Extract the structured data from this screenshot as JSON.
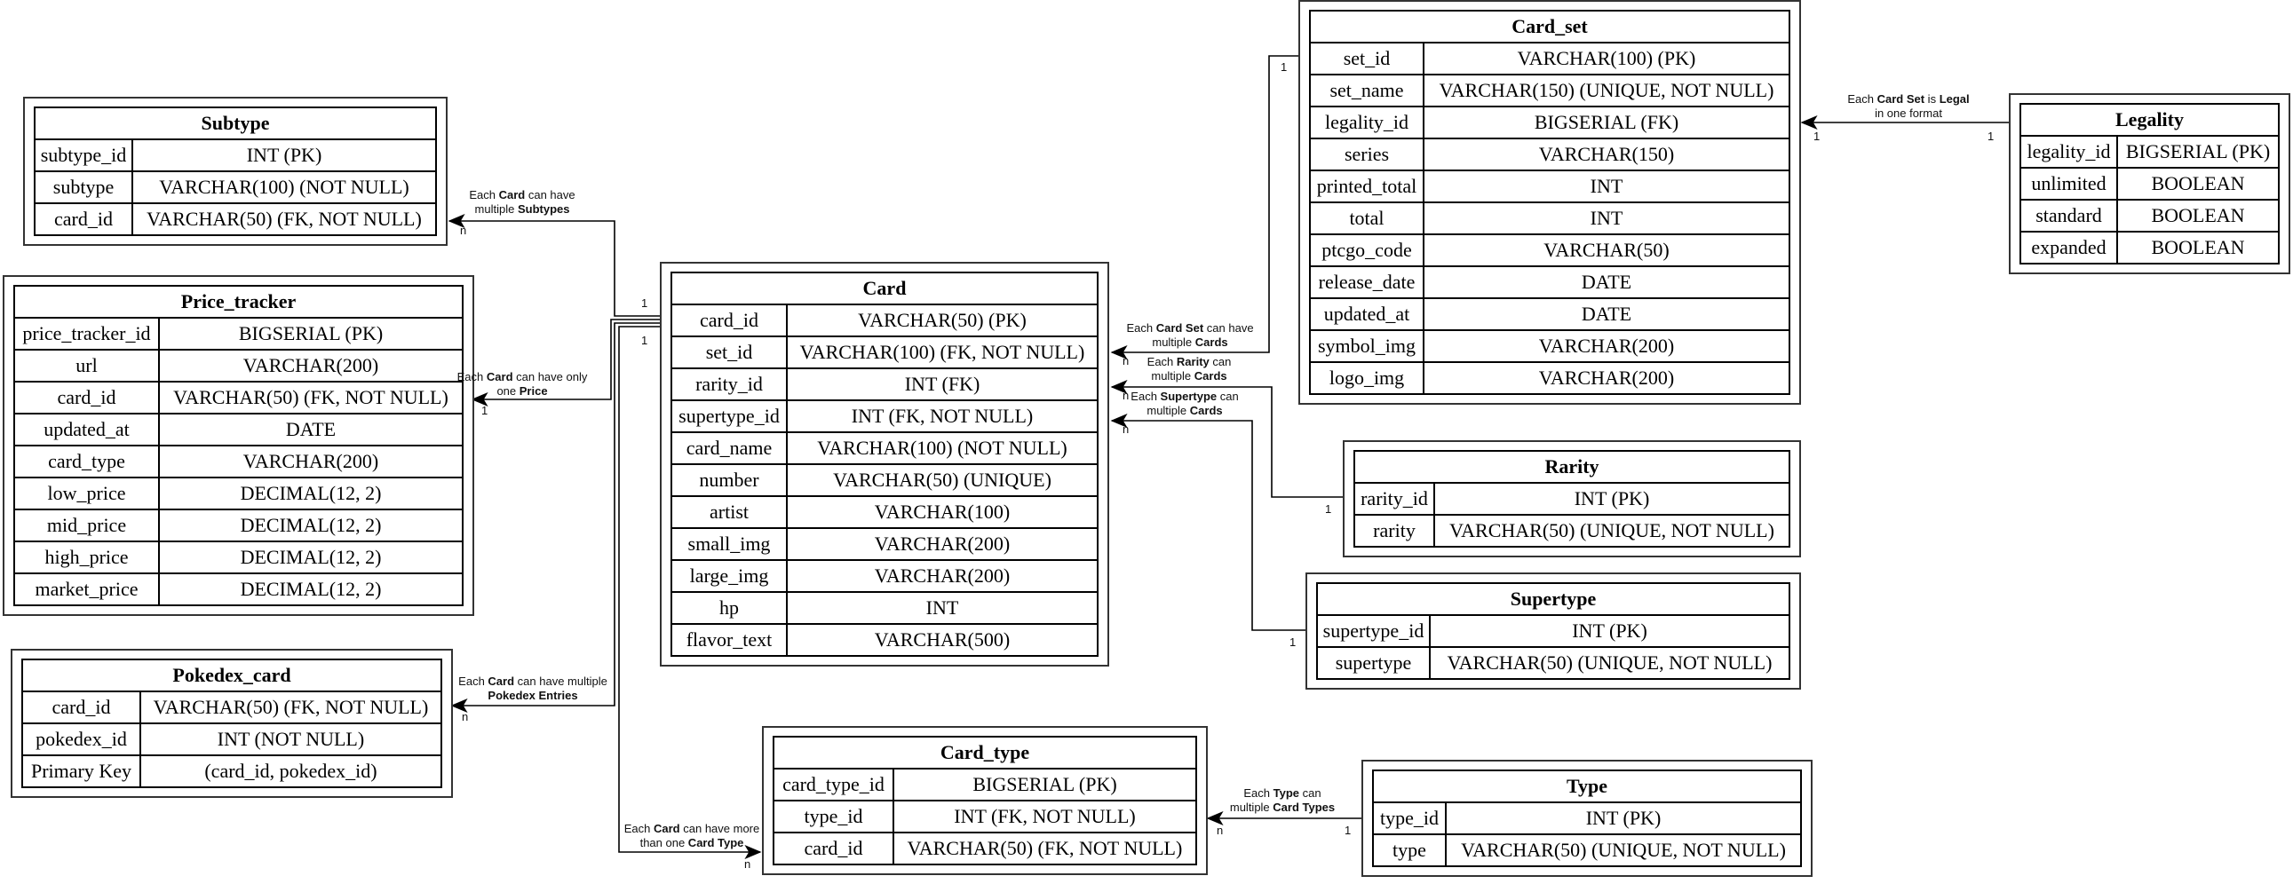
{
  "entities": [
    {
      "id": "subtype",
      "name": "Subtype",
      "rows": [
        [
          "subtype_id",
          "INT (PK)"
        ],
        [
          "subtype",
          "VARCHAR(100) (NOT NULL)"
        ],
        [
          "card_id",
          "VARCHAR(50) (FK, NOT NULL)"
        ]
      ]
    },
    {
      "id": "price_tracker",
      "name": "Price_tracker",
      "rows": [
        [
          "price_tracker_id",
          "BIGSERIAL (PK)"
        ],
        [
          "url",
          "VARCHAR(200)"
        ],
        [
          "card_id",
          "VARCHAR(50) (FK, NOT NULL)"
        ],
        [
          "updated_at",
          "DATE"
        ],
        [
          "card_type",
          "VARCHAR(200)"
        ],
        [
          "low_price",
          "DECIMAL(12, 2)"
        ],
        [
          "mid_price",
          "DECIMAL(12, 2)"
        ],
        [
          "high_price",
          "DECIMAL(12, 2)"
        ],
        [
          "market_price",
          "DECIMAL(12, 2)"
        ]
      ]
    },
    {
      "id": "pokedex_card",
      "name": "Pokedex_card",
      "rows": [
        [
          "card_id",
          "VARCHAR(50) (FK, NOT NULL)"
        ],
        [
          "pokedex_id",
          "INT (NOT NULL)"
        ],
        [
          "Primary Key",
          "(card_id, pokedex_id)"
        ]
      ]
    },
    {
      "id": "card",
      "name": "Card",
      "rows": [
        [
          "card_id",
          "VARCHAR(50) (PK)"
        ],
        [
          "set_id",
          "VARCHAR(100) (FK, NOT NULL)"
        ],
        [
          "rarity_id",
          "INT (FK)"
        ],
        [
          "supertype_id",
          "INT (FK, NOT NULL)"
        ],
        [
          "card_name",
          "VARCHAR(100) (NOT NULL)"
        ],
        [
          "number",
          "VARCHAR(50) (UNIQUE)"
        ],
        [
          "artist",
          "VARCHAR(100)"
        ],
        [
          "small_img",
          "VARCHAR(200)"
        ],
        [
          "large_img",
          "VARCHAR(200)"
        ],
        [
          "hp",
          "INT"
        ],
        [
          "flavor_text",
          "VARCHAR(500)"
        ]
      ]
    },
    {
      "id": "card_set",
      "name": "Card_set",
      "rows": [
        [
          "set_id",
          "VARCHAR(100) (PK)"
        ],
        [
          "set_name",
          "VARCHAR(150) (UNIQUE, NOT NULL)"
        ],
        [
          "legality_id",
          "BIGSERIAL (FK)"
        ],
        [
          "series",
          "VARCHAR(150)"
        ],
        [
          "printed_total",
          "INT"
        ],
        [
          "total",
          "INT"
        ],
        [
          "ptcgo_code",
          "VARCHAR(50)"
        ],
        [
          "release_date",
          "DATE"
        ],
        [
          "updated_at",
          "DATE"
        ],
        [
          "symbol_img",
          "VARCHAR(200)"
        ],
        [
          "logo_img",
          "VARCHAR(200)"
        ]
      ]
    },
    {
      "id": "legality",
      "name": "Legality",
      "rows": [
        [
          "legality_id",
          "BIGSERIAL (PK)"
        ],
        [
          "unlimited",
          "BOOLEAN"
        ],
        [
          "standard",
          "BOOLEAN"
        ],
        [
          "expanded",
          "BOOLEAN"
        ]
      ]
    },
    {
      "id": "rarity",
      "name": "Rarity",
      "rows": [
        [
          "rarity_id",
          "INT (PK)"
        ],
        [
          "rarity",
          "VARCHAR(50) (UNIQUE, NOT NULL)"
        ]
      ]
    },
    {
      "id": "supertype",
      "name": "Supertype",
      "rows": [
        [
          "supertype_id",
          "INT (PK)"
        ],
        [
          "supertype",
          "VARCHAR(50) (UNIQUE, NOT NULL)"
        ]
      ]
    },
    {
      "id": "card_type",
      "name": "Card_type",
      "rows": [
        [
          "card_type_id",
          "BIGSERIAL (PK)"
        ],
        [
          "type_id",
          "INT (FK, NOT NULL)"
        ],
        [
          "card_id",
          "VARCHAR(50) (FK, NOT NULL)"
        ]
      ]
    },
    {
      "id": "type",
      "name": "Type",
      "rows": [
        [
          "type_id",
          "INT (PK)"
        ],
        [
          "type",
          "VARCHAR(50) (UNIQUE, NOT NULL)"
        ]
      ]
    }
  ],
  "relationships": [
    {
      "id": "card-subtype",
      "label": [
        "Each ",
        {
          "b": "Card"
        },
        " can have",
        "\n",
        "multiple ",
        {
          "b": "Subtypes"
        }
      ],
      "from_card": "1",
      "to_card": "n"
    },
    {
      "id": "card-price",
      "label": [
        "Each ",
        {
          "b": "Card"
        },
        " can have only",
        "\n",
        "one ",
        {
          "b": "Price"
        }
      ],
      "from_card": "1",
      "to_card": "1"
    },
    {
      "id": "card-pokedex",
      "label": [
        "Each ",
        {
          "b": "Card"
        },
        " can have multiple",
        "\n",
        {
          "b": "Pokedex Entries"
        }
      ],
      "to_card": "n"
    },
    {
      "id": "card-cardtype",
      "label": [
        "Each ",
        {
          "b": "Card"
        },
        " can have more",
        "\n",
        "than one ",
        {
          "b": "Card Type"
        }
      ],
      "to_card": "n"
    },
    {
      "id": "set-card",
      "label": [
        "Each ",
        {
          "b": "Card Set"
        },
        " can have",
        "\n",
        "multiple ",
        {
          "b": "Cards"
        }
      ],
      "from_card": "1",
      "to_card": "n"
    },
    {
      "id": "rarity-card",
      "label": [
        "Each ",
        {
          "b": "Rarity"
        },
        " can",
        "\n",
        "multiple ",
        {
          "b": "Cards"
        }
      ],
      "from_card": "1",
      "to_card": "n"
    },
    {
      "id": "supertype-card",
      "label": [
        "Each ",
        {
          "b": "Supertype"
        },
        " can",
        "\n",
        "multiple ",
        {
          "b": "Cards"
        }
      ],
      "from_card": "1",
      "to_card": "n"
    },
    {
      "id": "legality-set",
      "label": [
        "Each ",
        {
          "b": "Card Set"
        },
        " is ",
        {
          "b": "Legal"
        },
        "\n",
        "in one format"
      ],
      "from_card": "1",
      "to_card": "1"
    },
    {
      "id": "type-cardtype",
      "label": [
        "Each ",
        {
          "b": "Type"
        },
        " can",
        "\n",
        "multiple ",
        {
          "b": "Card Types"
        }
      ],
      "from_card": "1",
      "to_card": "n"
    }
  ]
}
